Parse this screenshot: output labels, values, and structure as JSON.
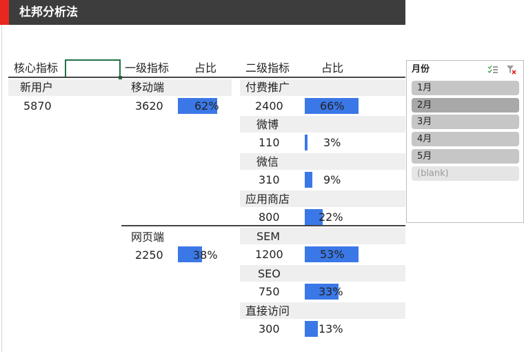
{
  "title": "杜邦分析法",
  "headers": {
    "core": "核心指标",
    "level1": "一级指标",
    "ratio1": "占比",
    "level2": "二级指标",
    "ratio2": "占比"
  },
  "core": {
    "label": "新用户",
    "value": "5870"
  },
  "level1": [
    {
      "label": "移动端",
      "value": "3620",
      "pct": "62%",
      "ratio": 0.62
    },
    {
      "label": "网页端",
      "value": "2250",
      "pct": "38%",
      "ratio": 0.38
    }
  ],
  "level2": [
    {
      "label": "付费推广",
      "value": "2400",
      "pct": "66%",
      "ratio": 0.66
    },
    {
      "label": "微博",
      "value": "110",
      "pct": "3%",
      "ratio": 0.03
    },
    {
      "label": "微信",
      "value": "310",
      "pct": "9%",
      "ratio": 0.09
    },
    {
      "label": "应用商店",
      "value": "800",
      "pct": "22%",
      "ratio": 0.22
    },
    {
      "label": "SEM",
      "value": "1200",
      "pct": "53%",
      "ratio": 0.53
    },
    {
      "label": "SEO",
      "value": "750",
      "pct": "33%",
      "ratio": 0.33
    },
    {
      "label": "直接访问",
      "value": "300",
      "pct": "13%",
      "ratio": 0.13
    }
  ],
  "slicer": {
    "title": "月份",
    "items": [
      {
        "label": "1月",
        "state": "on"
      },
      {
        "label": "2月",
        "state": "selected"
      },
      {
        "label": "3月",
        "state": "on"
      },
      {
        "label": "4月",
        "state": "on"
      },
      {
        "label": "5月",
        "state": "on"
      },
      {
        "label": "(blank)",
        "state": "blank"
      }
    ]
  },
  "colors": {
    "bar": "#3b78e7",
    "title_bg": "#3d3d3d",
    "title_accent": "#e8281e"
  }
}
